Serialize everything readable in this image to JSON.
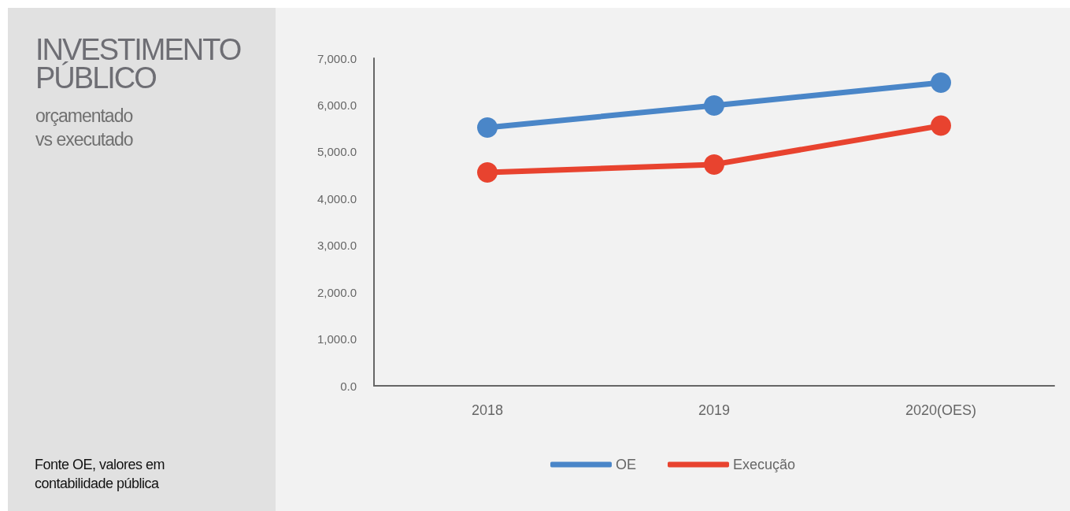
{
  "chart_data": {
    "type": "line",
    "title": "INVESTIMENTO\nPÚBLICO",
    "subtitle": "orçamentado\nvs executado",
    "annotations": [
      "Fonte OE, valores em\ncontabilidade pública"
    ],
    "categories": [
      "2018",
      "2019",
      "2020(OES)"
    ],
    "series": [
      {
        "name": "OE",
        "color": "#4a86c8",
        "values": [
          5520,
          5990,
          6480
        ]
      },
      {
        "name": "Execução",
        "color": "#e8432f",
        "values": [
          4560,
          4730,
          5560
        ]
      }
    ],
    "ylim": [
      0,
      7000
    ],
    "yticks": [
      {
        "value": 0,
        "label": "0.0"
      },
      {
        "value": 1000,
        "label": "1,000.0"
      },
      {
        "value": 2000,
        "label": "2,000.0"
      },
      {
        "value": 3000,
        "label": "3,000.0"
      },
      {
        "value": 4000,
        "label": "4,000.0"
      },
      {
        "value": 5000,
        "label": "5,000.0"
      },
      {
        "value": 6000,
        "label": "6,000.0"
      },
      {
        "value": 7000,
        "label": "7,000.0"
      }
    ],
    "grid": false,
    "legend": "bottom",
    "marker": "circle",
    "line_style": "solid"
  }
}
